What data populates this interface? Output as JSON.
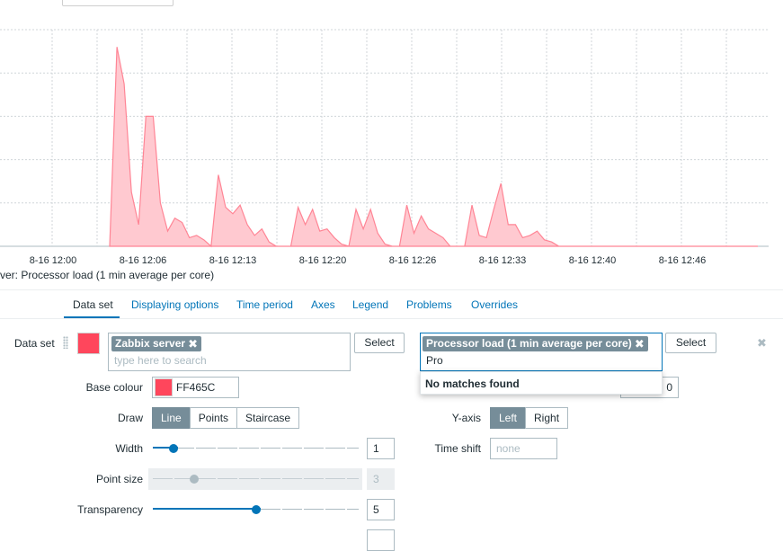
{
  "chart_data": {
    "type": "area",
    "x": [
      "12:06",
      "12:06:30",
      "12:07",
      "12:07:30",
      "12:08",
      "12:08:30",
      "12:09",
      "12:09:30",
      "12:10",
      "12:10:30",
      "12:11",
      "12:11:30",
      "12:12",
      "12:12:30",
      "12:13",
      "12:13:30",
      "12:14",
      "12:14:30",
      "12:15",
      "12:15:30",
      "12:16",
      "12:16:30",
      "12:17",
      "12:17:30",
      "12:18",
      "12:18:30",
      "12:19",
      "12:19:30",
      "12:20",
      "12:20:30",
      "12:21",
      "12:21:30",
      "12:22",
      "12:22:30",
      "12:23",
      "12:23:30",
      "12:24",
      "12:24:30",
      "12:25",
      "12:25:30",
      "12:26",
      "12:26:30",
      "12:27",
      "12:27:30",
      "12:28",
      "12:28:30",
      "12:29",
      "12:29:30",
      "12:30",
      "12:30:30",
      "12:31",
      "12:31:30",
      "12:32",
      "12:32:30",
      "12:33",
      "12:33:30",
      "12:34",
      "12:34:30",
      "12:35",
      "12:35:30",
      "12:36",
      "12:36:30",
      "12:37",
      "12:37:30",
      "12:38",
      "12:38:30",
      "12:39",
      "12:39:30",
      "12:40",
      "12:40:30",
      "12:41",
      "12:41:30",
      "12:42",
      "12:42:30",
      "12:43",
      "12:43:30",
      "12:44",
      "12:44:30",
      "12:45",
      "12:45:30",
      "12:46",
      "12:46:30",
      "12:47",
      "12:47:30",
      "12:48",
      "12:48:30",
      "12:49",
      "12:49:30",
      "12:50",
      "12:50:30"
    ],
    "series": [
      {
        "values": [
          0.0,
          0.92,
          0.75,
          0.25,
          0.1,
          0.6,
          0.6,
          0.2,
          0.07,
          0.13,
          0.11,
          0.04,
          0.05,
          0.03,
          0.0,
          0.33,
          0.18,
          0.15,
          0.19,
          0.1,
          0.05,
          0.08,
          0.02,
          0.0,
          0.0,
          0.0,
          0.18,
          0.1,
          0.17,
          0.07,
          0.08,
          0.04,
          0.01,
          0.0,
          0.17,
          0.08,
          0.17,
          0.06,
          0.01,
          0.0,
          0.0,
          0.19,
          0.06,
          0.14,
          0.08,
          0.06,
          0.04,
          0.0,
          0.0,
          0.0,
          0.19,
          0.05,
          0.04,
          0.17,
          0.29,
          0.1,
          0.1,
          0.04,
          0.05,
          0.07,
          0.03,
          0.02,
          0.0,
          0.0,
          0.0,
          0.0,
          0.0,
          0.0,
          0.0,
          0.0,
          0.0,
          0.0,
          0.0,
          0.0,
          0.0,
          0.0,
          0.0,
          0.0,
          0.0,
          0.0,
          0.0,
          0.0,
          0.0,
          0.0,
          0.0,
          0.0,
          0.0,
          0.0,
          0.0,
          0.0
        ],
        "color": "#FF465C"
      }
    ],
    "x_tick_labels": [
      "8-16 12:00",
      "8-16 12:06",
      "8-16 12:13",
      "8-16 12:20",
      "8-16 12:26",
      "8-16 12:33",
      "8-16 12:40",
      "8-16 12:46"
    ],
    "ylim": [
      0,
      1.0
    ],
    "grid": true
  },
  "legend": {
    "text": "ver: Processor load (1 min average per core)"
  },
  "tabs": [
    {
      "label": "Data set",
      "active": true
    },
    {
      "label": "Displaying options"
    },
    {
      "label": "Time period"
    },
    {
      "label": "Axes"
    },
    {
      "label": "Legend"
    },
    {
      "label": "Problems"
    },
    {
      "label": "Overrides"
    }
  ],
  "dataset": {
    "label": "Data set",
    "color": "#FF465C",
    "host_tag": "Zabbix server",
    "host_placeholder": "type here to search",
    "select_label": "Select",
    "item_tag": "Processor load (1 min average per core)",
    "item_input": "Pro",
    "no_matches": "No matches found",
    "hidden_value_fragment": "0"
  },
  "form": {
    "base_colour_label": "Base colour",
    "base_colour_value": "FF465C",
    "draw_label": "Draw",
    "draw_options": [
      "Line",
      "Points",
      "Staircase"
    ],
    "draw_selected": "Line",
    "width_label": "Width",
    "width_value": "1",
    "width_fraction": 0.1,
    "point_size_label": "Point size",
    "point_size_value": "3",
    "point_size_fraction": 0.2,
    "transparency_label": "Transparency",
    "transparency_value": "5",
    "transparency_fraction": 0.5,
    "yaxis_label": "Y-axis",
    "yaxis_options": [
      "Left",
      "Right"
    ],
    "yaxis_selected": "Left",
    "time_shift_label": "Time shift",
    "time_shift_placeholder": "none"
  },
  "colors": {
    "accent": "#0275b8",
    "tag_bg": "#768d99",
    "series": "#FF465C"
  }
}
